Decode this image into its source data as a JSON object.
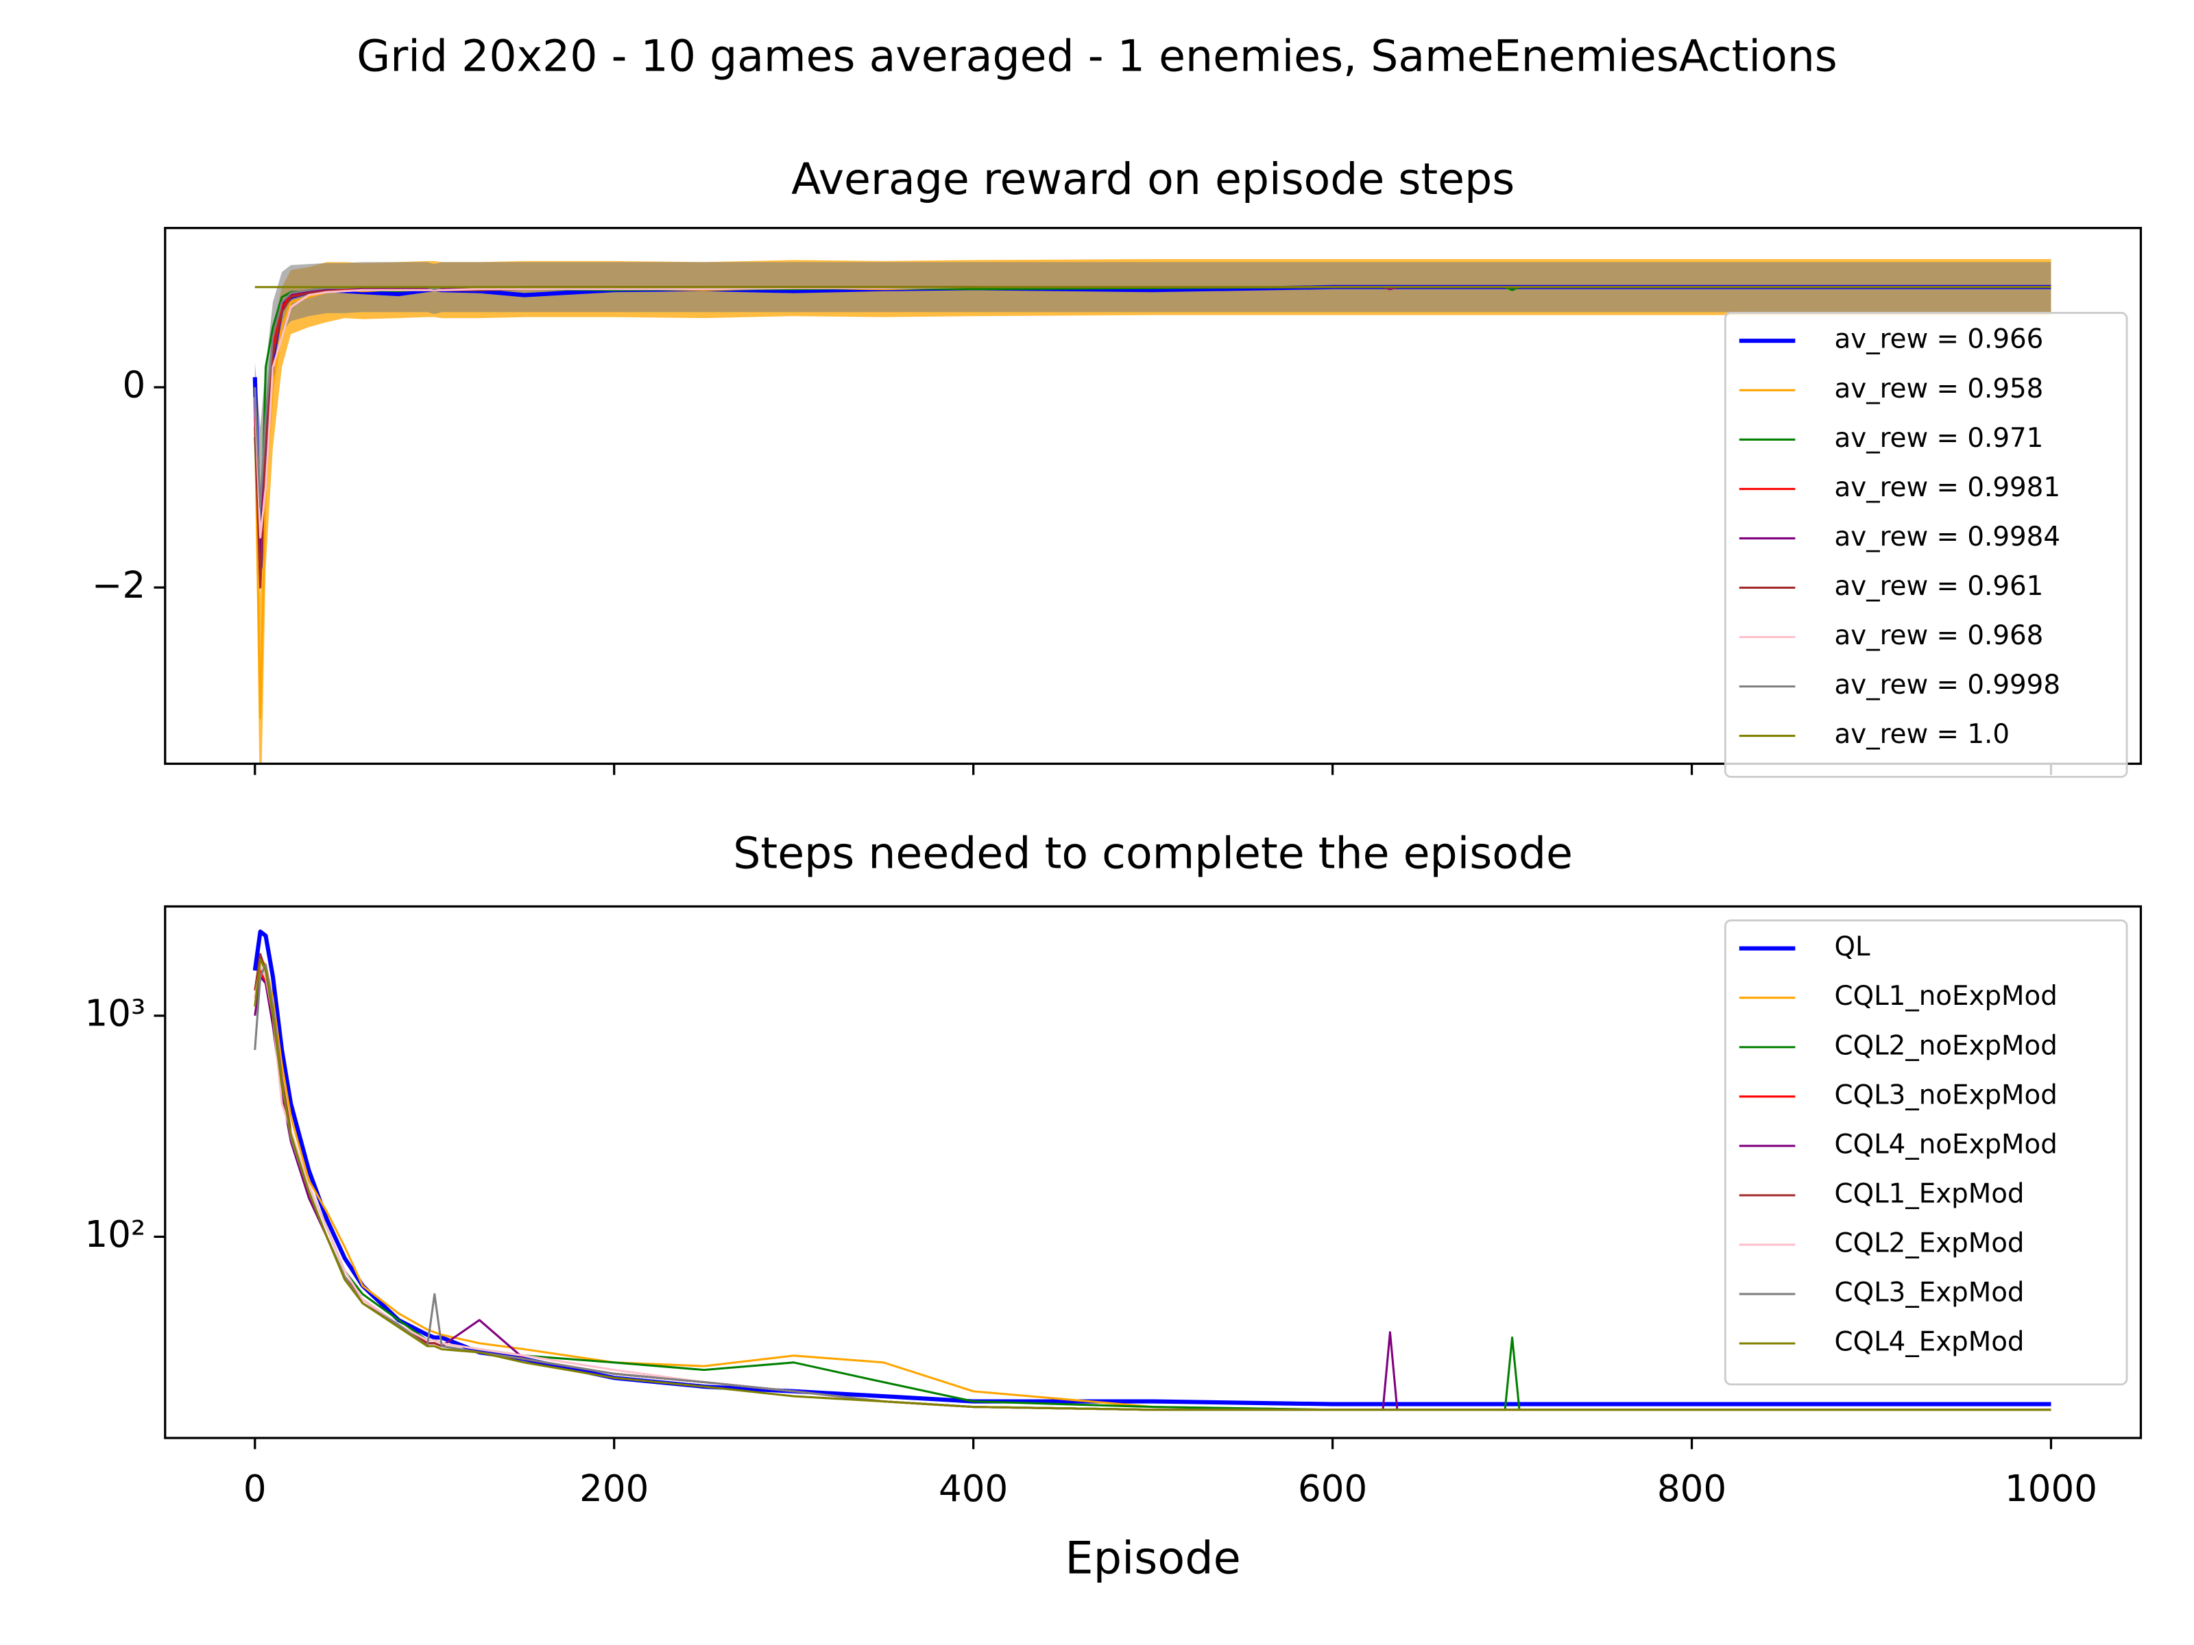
{
  "suptitle": "Grid 20x20 - 10 games averaged - 1 enemies, SameEnemiesActions",
  "chart_data": [
    {
      "type": "line",
      "title": "Average reward on episode steps",
      "x": [
        0,
        3,
        6,
        10,
        15,
        20,
        30,
        40,
        50,
        60,
        80,
        96,
        100,
        104,
        125,
        150,
        200,
        250,
        300,
        350,
        400,
        500,
        600,
        628,
        632,
        636,
        696,
        700,
        704,
        800,
        900,
        1000
      ],
      "xlim": [
        -50,
        1050
      ],
      "xticks": [
        0,
        200,
        400,
        600,
        800,
        1000
      ],
      "xticklabels": false,
      "ylim": [
        -3.76,
        1.59
      ],
      "yticks": [
        {
          "value": -2,
          "label": "−2"
        },
        0
      ],
      "legend": "center right",
      "series": [
        {
          "name": "av_rew = 0.966",
          "color": "#0000ff",
          "linewidth": 3,
          "values": [
            0.1,
            -1.8,
            -0.8,
            0.3,
            0.8,
            0.9,
            0.95,
            0.97,
            0.96,
            0.95,
            0.93,
            0.97,
            0.98,
            0.97,
            0.96,
            0.92,
            0.97,
            0.98,
            0.96,
            0.98,
            0.99,
            0.97,
            1.0,
            1.0,
            1.0,
            1.0,
            1.0,
            1.0,
            1.0,
            1.0,
            1.0,
            1.0
          ]
        },
        {
          "name": "av_rew = 0.958",
          "color": "#ffa500",
          "linewidth": 1.5,
          "values": [
            -0.3,
            -3.3,
            -1.0,
            0.0,
            0.6,
            0.85,
            0.9,
            0.95,
            0.97,
            0.96,
            0.97,
            0.98,
            0.98,
            0.97,
            0.97,
            0.98,
            0.98,
            0.97,
            0.99,
            0.98,
            0.99,
            1.0,
            1.0,
            1.0,
            1.0,
            1.0,
            1.0,
            1.0,
            1.0,
            1.0,
            1.0,
            1.0
          ],
          "err": [
            0.3,
            1.2,
            0.8,
            0.6,
            0.4,
            0.32,
            0.3,
            0.3,
            0.28,
            0.28,
            0.28,
            0.28,
            0.28,
            0.28,
            0.28,
            0.28,
            0.28,
            0.28,
            0.28,
            0.28,
            0.28,
            0.28,
            0.28,
            0.28,
            0.28,
            0.28,
            0.28,
            0.28,
            0.28,
            0.28,
            0.28,
            0.28
          ]
        },
        {
          "name": "av_rew = 0.971",
          "color": "#008000",
          "linewidth": 1.5,
          "values": [
            -0.5,
            -1.8,
            0.2,
            0.6,
            0.9,
            0.95,
            0.96,
            0.97,
            0.98,
            0.97,
            0.96,
            0.98,
            0.97,
            0.98,
            0.97,
            0.98,
            0.97,
            0.98,
            0.98,
            0.99,
            0.98,
            0.99,
            1.0,
            1.0,
            1.0,
            1.0,
            1.0,
            0.97,
            1.0,
            1.0,
            1.0,
            1.0
          ]
        },
        {
          "name": "av_rew = 0.9981",
          "color": "#ff0000",
          "linewidth": 1.5,
          "values": [
            -0.3,
            -1.9,
            -0.5,
            0.4,
            0.8,
            0.92,
            0.96,
            0.98,
            0.98,
            0.99,
            0.99,
            0.99,
            0.99,
            0.99,
            0.99,
            1.0,
            1.0,
            1.0,
            1.0,
            1.0,
            1.0,
            1.0,
            1.0,
            1.0,
            1.0,
            1.0,
            1.0,
            1.0,
            1.0,
            1.0,
            1.0,
            1.0
          ]
        },
        {
          "name": "av_rew = 0.9984",
          "color": "#800080",
          "linewidth": 1.5,
          "values": [
            -0.2,
            -1.7,
            -0.4,
            0.5,
            0.85,
            0.93,
            0.96,
            0.98,
            0.99,
            0.99,
            0.99,
            0.99,
            0.99,
            0.99,
            0.97,
            1.0,
            1.0,
            1.0,
            1.0,
            1.0,
            1.0,
            1.0,
            1.0,
            1.0,
            0.98,
            1.0,
            1.0,
            1.0,
            1.0,
            1.0,
            1.0,
            1.0
          ]
        },
        {
          "name": "av_rew = 0.961",
          "color": "#a52a2a",
          "linewidth": 1.5,
          "values": [
            -0.4,
            -2.0,
            -0.6,
            0.3,
            0.75,
            0.9,
            0.94,
            0.96,
            0.96,
            0.97,
            0.97,
            0.97,
            0.97,
            0.97,
            0.97,
            0.98,
            0.98,
            0.98,
            0.99,
            0.99,
            1.0,
            1.0,
            1.0,
            1.0,
            1.0,
            1.0,
            1.0,
            1.0,
            1.0,
            1.0,
            1.0,
            1.0
          ]
        },
        {
          "name": "av_rew = 0.968",
          "color": "#ffc0cb",
          "linewidth": 1.5,
          "values": [
            -0.1,
            -1.5,
            -1.0,
            0.2,
            0.5,
            0.8,
            0.92,
            0.95,
            0.96,
            0.97,
            0.97,
            0.97,
            0.97,
            0.97,
            0.98,
            0.98,
            0.98,
            0.98,
            0.99,
            0.99,
            1.0,
            1.0,
            1.0,
            1.0,
            1.0,
            1.0,
            1.0,
            1.0,
            1.0,
            1.0,
            1.0,
            1.0
          ]
        },
        {
          "name": "av_rew = 0.9998",
          "color": "#808080",
          "linewidth": 1.5,
          "values": [
            0.0,
            -1.2,
            -0.3,
            0.5,
            0.85,
            0.94,
            0.97,
            0.99,
            0.99,
            1.0,
            1.0,
            1.0,
            0.98,
            1.0,
            1.0,
            1.0,
            1.0,
            1.0,
            1.0,
            1.0,
            1.0,
            1.0,
            1.0,
            1.0,
            1.0,
            1.0,
            1.0,
            1.0,
            1.0,
            1.0,
            1.0,
            1.0
          ],
          "err": [
            0.25,
            0.8,
            0.5,
            0.35,
            0.3,
            0.28,
            0.26,
            0.25,
            0.25,
            0.25,
            0.25,
            0.25,
            0.25,
            0.25,
            0.25,
            0.25,
            0.25,
            0.25,
            0.25,
            0.25,
            0.25,
            0.25,
            0.25,
            0.25,
            0.25,
            0.25,
            0.25,
            0.25,
            0.25,
            0.25,
            0.25,
            0.25
          ]
        },
        {
          "name": "av_rew = 1.0",
          "color": "#808000",
          "linewidth": 1.5,
          "values": [
            1.0,
            1.0,
            1.0,
            1.0,
            1.0,
            1.0,
            1.0,
            1.0,
            1.0,
            1.0,
            1.0,
            1.0,
            1.0,
            1.0,
            1.0,
            1.0,
            1.0,
            1.0,
            1.0,
            1.0,
            1.0,
            1.0,
            1.0,
            1.0,
            1.0,
            1.0,
            1.0,
            1.0,
            1.0,
            1.0,
            1.0,
            1.0
          ]
        }
      ]
    },
    {
      "type": "line",
      "title": "Steps needed to complete the episode",
      "xlabel": "Episode",
      "log_y": true,
      "x": [
        0,
        3,
        6,
        10,
        15,
        20,
        30,
        40,
        50,
        60,
        80,
        96,
        100,
        104,
        125,
        150,
        200,
        250,
        300,
        350,
        400,
        500,
        600,
        628,
        632,
        636,
        696,
        700,
        704,
        800,
        900,
        1000
      ],
      "xlim": [
        -50,
        1050
      ],
      "xticks": [
        0,
        200,
        400,
        600,
        800,
        1000
      ],
      "ylim": [
        12.3,
        3120
      ],
      "yticks": [
        {
          "value": 100,
          "label": "10²"
        },
        {
          "value": 1000,
          "label": "10³"
        }
      ],
      "legend": "upper right",
      "series": [
        {
          "name": "QL",
          "color": "#0000ff",
          "linewidth": 3,
          "values": [
            1600,
            2400,
            2300,
            1500,
            700,
            400,
            200,
            120,
            80,
            60,
            42,
            36,
            35,
            35,
            30,
            28,
            23,
            21,
            20,
            19,
            18,
            18,
            17.5,
            17.5,
            17.5,
            17.5,
            17.5,
            17.5,
            17.5,
            17.5,
            17.5,
            17.5
          ]
        },
        {
          "name": "CQL1_noExpMod",
          "color": "#ffa500",
          "linewidth": 1.5,
          "values": [
            1300,
            1800,
            1700,
            1200,
            600,
            350,
            180,
            130,
            90,
            60,
            45,
            38,
            37,
            36,
            33,
            31,
            27,
            26,
            29,
            27,
            20,
            17,
            16.5,
            16.5,
            16.5,
            16.5,
            16.5,
            16.5,
            16.5,
            16.5,
            16.5,
            16.5
          ]
        },
        {
          "name": "CQL2_noExpMod",
          "color": "#008000",
          "linewidth": 1.5,
          "values": [
            1100,
            1700,
            1500,
            1000,
            500,
            300,
            170,
            110,
            70,
            55,
            42,
            34,
            34,
            33,
            31,
            29,
            27,
            25,
            27,
            22,
            18,
            17,
            16.5,
            16.5,
            16.5,
            16.5,
            16.5,
            35,
            16.5,
            16.5,
            16.5,
            16.5
          ]
        },
        {
          "name": "CQL3_noExpMod",
          "color": "#ff0000",
          "linewidth": 1.5,
          "values": [
            1200,
            1600,
            1400,
            1000,
            500,
            280,
            160,
            100,
            65,
            52,
            40,
            33,
            33,
            32,
            30,
            28,
            24,
            22,
            20,
            18,
            17,
            16.5,
            16.5,
            16.5,
            16.5,
            16.5,
            16.5,
            16.5,
            16.5,
            16.5,
            16.5,
            16.5
          ]
        },
        {
          "name": "CQL4_noExpMod",
          "color": "#800080",
          "linewidth": 1.5,
          "values": [
            1000,
            1500,
            1400,
            900,
            450,
            270,
            150,
            100,
            65,
            50,
            40,
            33,
            33,
            32,
            42,
            28,
            24,
            22,
            20,
            18,
            17,
            16.5,
            16.5,
            16.5,
            37,
            16.5,
            16.5,
            16.5,
            16.5,
            16.5,
            16.5,
            16.5
          ]
        },
        {
          "name": "CQL1_ExpMod",
          "color": "#a52a2a",
          "linewidth": 1.5,
          "values": [
            1300,
            1900,
            1600,
            1100,
            520,
            300,
            160,
            100,
            66,
            52,
            40,
            33,
            33,
            32,
            30,
            28,
            24,
            22,
            20,
            18,
            17,
            16.5,
            16.5,
            16.5,
            16.5,
            16.5,
            16.5,
            16.5,
            16.5,
            16.5,
            16.5,
            16.5
          ]
        },
        {
          "name": "CQL2_ExpMod",
          "color": "#ffc0cb",
          "linewidth": 1.5,
          "values": [
            1200,
            1700,
            1500,
            1000,
            400,
            300,
            170,
            110,
            70,
            52,
            40,
            34,
            34,
            33,
            31,
            29,
            25,
            22,
            20,
            18,
            17,
            16.5,
            16.5,
            16.5,
            16.5,
            16.5,
            16.5,
            16.5,
            16.5,
            16.5,
            16.5,
            16.5
          ]
        },
        {
          "name": "CQL3_ExpMod",
          "color": "#808080",
          "linewidth": 1.5,
          "values": [
            700,
            1500,
            1700,
            1100,
            500,
            280,
            160,
            100,
            66,
            50,
            40,
            32,
            55,
            32,
            30,
            28,
            24,
            22,
            20,
            18,
            17,
            16.5,
            16.5,
            16.5,
            16.5,
            16.5,
            16.5,
            16.5,
            16.5,
            16.5,
            16.5,
            16.5
          ]
        },
        {
          "name": "CQL4_ExpMod",
          "color": "#808000",
          "linewidth": 1.5,
          "values": [
            1100,
            1800,
            1600,
            1000,
            480,
            290,
            160,
            100,
            64,
            50,
            39,
            32,
            32,
            31,
            30,
            27,
            23,
            21,
            19,
            18,
            17,
            16.5,
            16.5,
            16.5,
            16.5,
            16.5,
            16.5,
            16.5,
            16.5,
            16.5,
            16.5,
            16.5
          ]
        }
      ]
    }
  ]
}
